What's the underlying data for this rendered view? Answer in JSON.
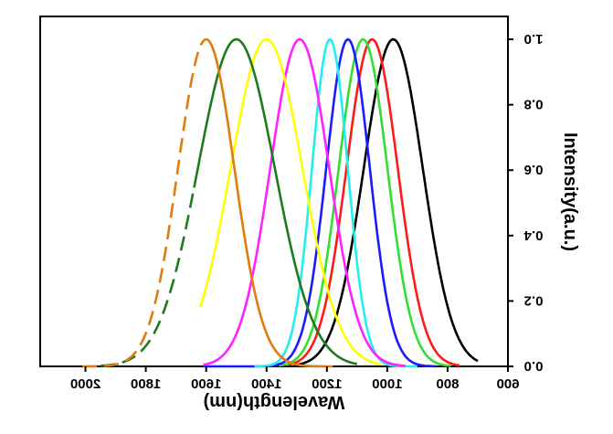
{
  "chart_data": {
    "type": "line",
    "title": "",
    "xlabel": "Wavelength(nm)",
    "ylabel": "Intensity(a.u.)",
    "mirrored": true,
    "x_axis": {
      "reversed": true,
      "range": [
        600,
        2150
      ],
      "ticks": [
        600,
        800,
        1000,
        1200,
        1400,
        1600,
        1800,
        2000
      ]
    },
    "y_axis": {
      "side": "right",
      "range": [
        0,
        1.07
      ],
      "ticks": [
        0.0,
        0.2,
        0.4,
        0.6,
        0.8,
        1.0
      ],
      "tick_labels": [
        "0.0",
        "0.2",
        "0.4",
        "0.6",
        "0.8",
        "1.0"
      ]
    },
    "grid": false,
    "legend": "none",
    "series": [
      {
        "color": "#000000",
        "style": "solid",
        "peak": 980,
        "fwhm": 230,
        "x_start": 1310,
        "x_end": 700
      },
      {
        "color": "#ff1a1a",
        "style": "solid",
        "peak": 1050,
        "fwhm": 200,
        "x_start": 1330,
        "x_end": 760
      },
      {
        "color": "#33dd33",
        "style": "solid",
        "peak": 1080,
        "fwhm": 190,
        "x_start": 1360,
        "x_end": 790
      },
      {
        "color": "#1a1aff",
        "style": "solid",
        "peak": 1130,
        "fwhm": 170,
        "x_start": 1610,
        "x_end": 840
      },
      {
        "color": "#22eeee",
        "style": "solid",
        "peak": 1190,
        "fwhm": 140,
        "x_start": 1440,
        "x_end": 900
      },
      {
        "color": "#ff22ff",
        "style": "solid",
        "peak": 1290,
        "fwhm": 230,
        "x_start": 1610,
        "x_end": 940
      },
      {
        "color": "#ffff00",
        "style": "solid",
        "peak": 1400,
        "fwhm": 280,
        "x_start": 1620,
        "x_end": 1020
      },
      {
        "color": "#1f7a1f",
        "style": "solid",
        "peak": 1500,
        "fwhm": 300,
        "x_start": 1640,
        "x_end": 1100
      },
      {
        "color": "#1f7a1f",
        "style": "dashed",
        "peak": 1500,
        "fwhm": 300,
        "x_start": 1950,
        "x_end": 1640
      },
      {
        "color": "#e07b10",
        "style": "solid",
        "peak": 1600,
        "fwhm": 220,
        "x_start": 1600,
        "x_end": 1180
      },
      {
        "color": "#e07b10",
        "style": "dashed",
        "peak": 1600,
        "fwhm": 220,
        "x_start": 2010,
        "x_end": 1600
      }
    ]
  }
}
